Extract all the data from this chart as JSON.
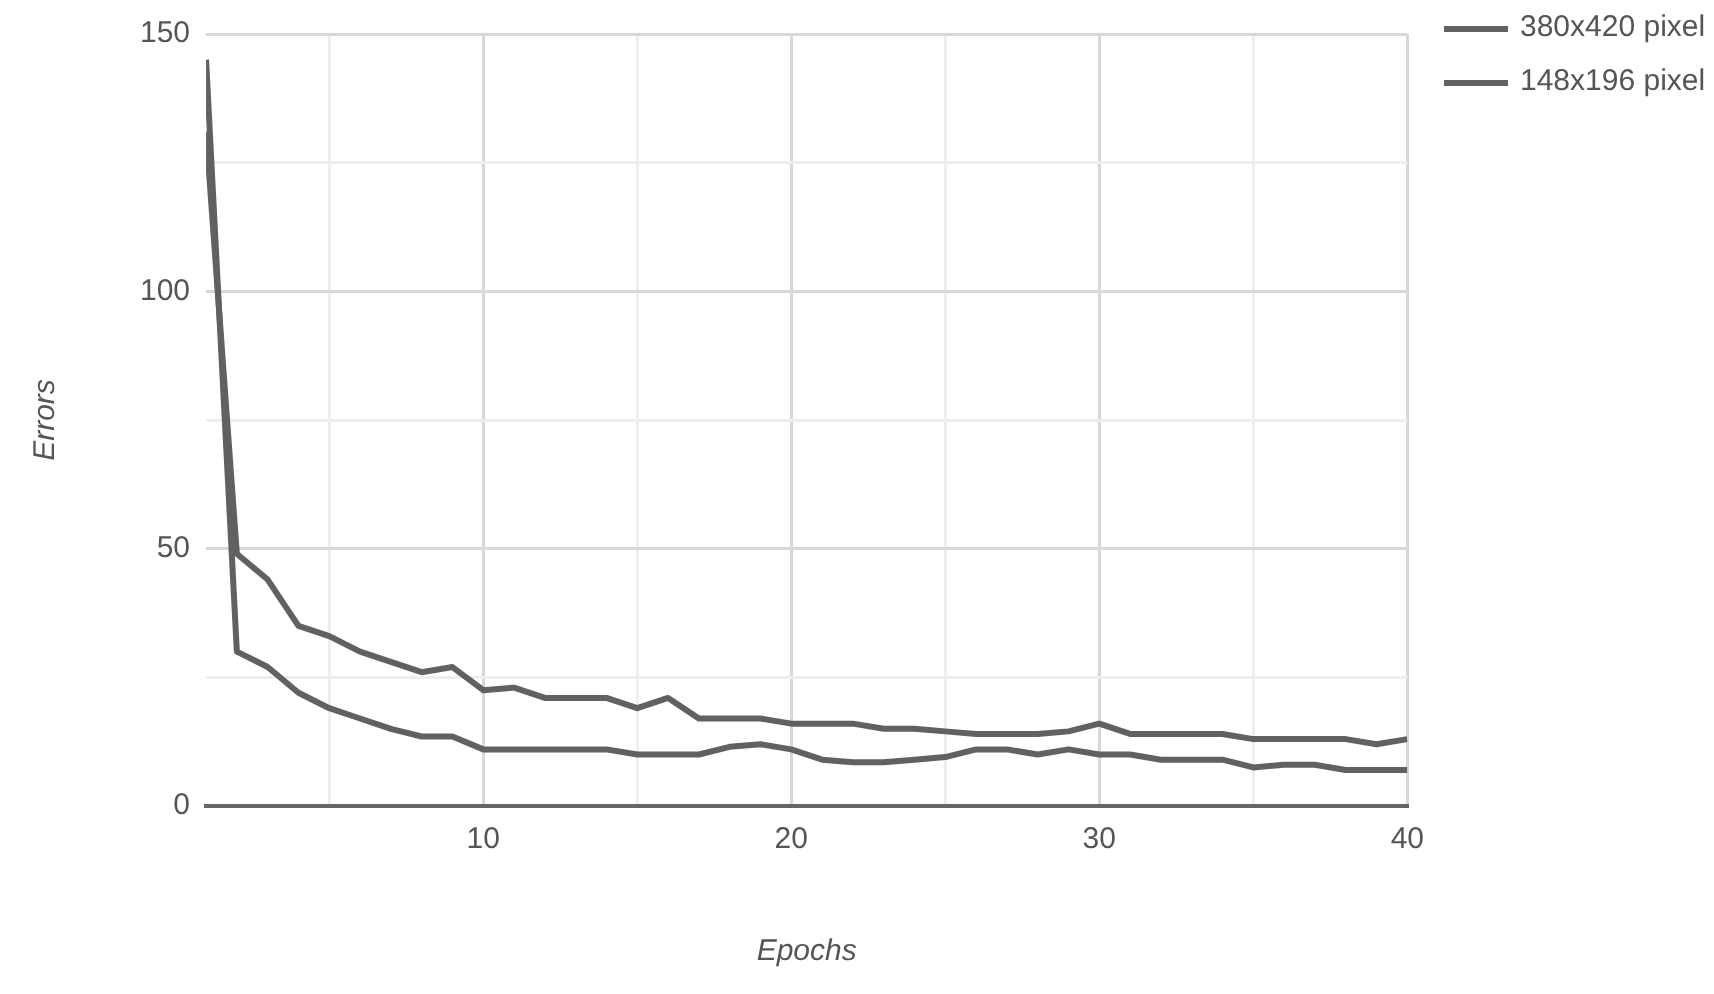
{
  "chart_data": {
    "type": "line",
    "xlabel": "Epochs",
    "ylabel": "Errors",
    "xlim": [
      1,
      40
    ],
    "ylim": [
      0,
      150
    ],
    "xticks": [
      {
        "value": 5,
        "label": null
      },
      10,
      {
        "value": 15,
        "label": null
      },
      20,
      {
        "value": 25,
        "label": null
      },
      30,
      {
        "value": 35,
        "label": null
      },
      40
    ],
    "yticks": [
      0,
      {
        "value": 25,
        "label": null
      },
      50,
      {
        "value": 75,
        "label": null
      },
      100,
      {
        "value": 125,
        "label": null
      },
      150
    ],
    "x": [
      1,
      2,
      3,
      4,
      5,
      6,
      7,
      8,
      9,
      10,
      11,
      12,
      13,
      14,
      15,
      16,
      17,
      18,
      19,
      20,
      21,
      22,
      23,
      24,
      25,
      26,
      27,
      28,
      29,
      30,
      31,
      32,
      33,
      34,
      35,
      36,
      37,
      38,
      39,
      40
    ],
    "grid": true,
    "legend": "top right",
    "marker": "none",
    "line_style": "solid",
    "series": [
      {
        "name": "380x420 pixel",
        "color": "#616161",
        "values": [
          131,
          49,
          44,
          35,
          33,
          30,
          28,
          26,
          27,
          22.5,
          23,
          21,
          21,
          21,
          19,
          21,
          17,
          17,
          17,
          16,
          16,
          16,
          15,
          15,
          14.5,
          14,
          14,
          14,
          14.5,
          16,
          14,
          14,
          14,
          14,
          13,
          13,
          13,
          13,
          12,
          13
        ]
      },
      {
        "name": "148x196 pixel",
        "color": "#616161",
        "values": [
          145,
          30,
          27,
          22,
          19,
          17,
          15,
          13.5,
          13.5,
          11,
          11,
          11,
          11,
          11,
          10,
          10,
          10,
          11.5,
          12,
          11,
          9,
          8.5,
          8.5,
          9,
          9.5,
          11,
          11,
          10,
          11,
          10,
          10,
          9,
          9,
          9,
          7.5,
          8,
          8,
          7,
          7,
          7
        ]
      }
    ]
  }
}
